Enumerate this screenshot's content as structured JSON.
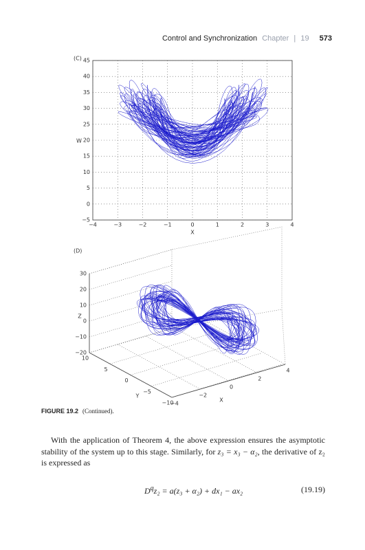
{
  "header": {
    "running_title": "Control and Synchronization",
    "chapter": "Chapter",
    "chapter_number": "19",
    "page_number": "573"
  },
  "figure_c": {
    "label": "(C)",
    "xlabel": "X",
    "ylabel": "W",
    "xlim": [
      -4,
      4
    ],
    "ylim": [
      -5,
      45
    ],
    "xticks": [
      {
        "value": -4,
        "label": "−4"
      },
      {
        "value": -3,
        "label": "−3"
      },
      {
        "value": -2,
        "label": "−2"
      },
      {
        "value": -1,
        "label": "−1"
      },
      0,
      1,
      2,
      3,
      4
    ],
    "yticks": [
      {
        "value": -5,
        "label": "−5"
      },
      0,
      5,
      10,
      15,
      20,
      25,
      30,
      35,
      40,
      45
    ],
    "grid": true
  },
  "figure_d": {
    "label": "(D)",
    "xlabel": "X",
    "ylabel": "Y",
    "zlabel": "Z",
    "xlim": [
      -4,
      4
    ],
    "ylim": [
      10,
      -10
    ],
    "zlim": [
      -20,
      30
    ],
    "xticks": [
      {
        "value": -4,
        "label": "−4"
      },
      {
        "value": -2,
        "label": "−2"
      },
      0,
      2,
      4
    ],
    "yticks": [
      10,
      5,
      0,
      {
        "value": -5,
        "label": "−5"
      },
      {
        "value": -10,
        "label": "−10"
      }
    ],
    "zticks": [
      {
        "value": -20,
        "label": "−20"
      },
      {
        "value": -10,
        "label": "−10"
      },
      0,
      10,
      20,
      30
    ]
  },
  "caption": {
    "label": "FIGURE 19.2",
    "text": "(Continued)."
  },
  "body": {
    "text_1": "With the application of Theorem 4, the above expression ensures the asymptotic stability of the system up to this stage. Similarly, for ",
    "math_1": "z₃ = x₃ − α₂",
    "text_2": ", the derivative of z₂ is expressed as"
  },
  "equation": {
    "base": "D",
    "superscript": "q",
    "rest": "z₂ = a(z₃ + α₂) + dx₁ − ax₂",
    "number": "(19.19)"
  }
}
